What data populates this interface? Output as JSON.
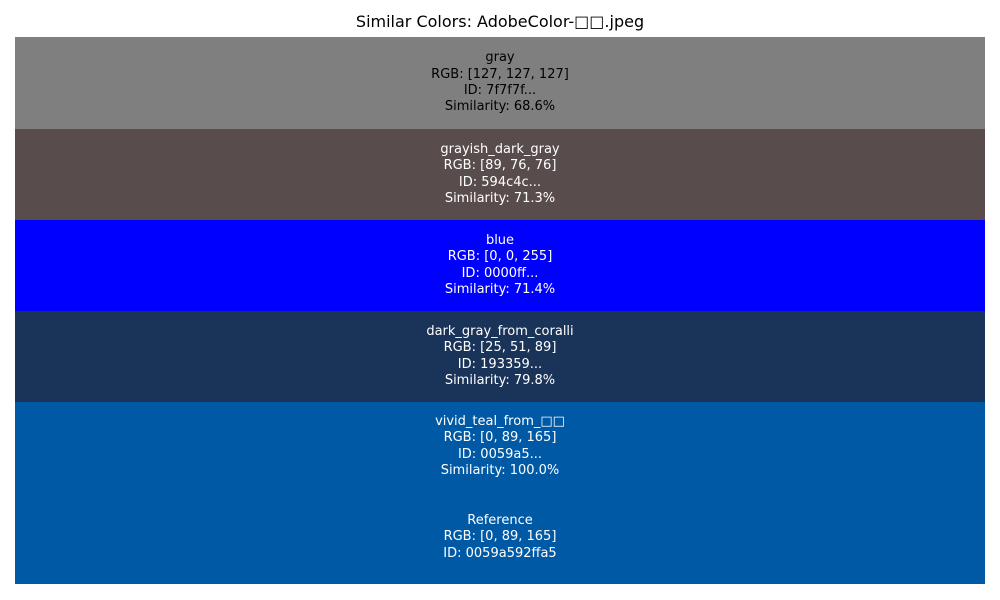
{
  "title": "Similar Colors: AdobeColor-□□.jpeg",
  "chart_data": {
    "type": "table",
    "title": "Similar Colors: AdobeColor-□□.jpeg",
    "rows": [
      {
        "name": "gray",
        "rgb": "RGB: [127, 127, 127]",
        "id": "ID: 7f7f7f...",
        "similarity": "Similarity: 68.6%",
        "color": "#7f7f7f",
        "similarity_value": 68.6
      },
      {
        "name": "grayish_dark_gray",
        "rgb": "RGB: [89, 76, 76]",
        "id": "ID: 594c4c...",
        "similarity": "Similarity: 71.3%",
        "color": "#594c4c",
        "similarity_value": 71.3
      },
      {
        "name": "blue",
        "rgb": "RGB: [0, 0, 255]",
        "id": "ID: 0000ff...",
        "similarity": "Similarity: 71.4%",
        "color": "#0000ff",
        "similarity_value": 71.4
      },
      {
        "name": "dark_gray_from_coralli",
        "rgb": "RGB: [25, 51, 89]",
        "id": "ID: 193359...",
        "similarity": "Similarity: 79.8%",
        "color": "#193359",
        "similarity_value": 79.8
      },
      {
        "name": "vivid_teal_from_□□",
        "rgb": "RGB: [0, 89, 165]",
        "id": "ID: 0059a5...",
        "similarity": "Similarity: 100.0%",
        "color": "#0059a5",
        "similarity_value": 100.0
      }
    ],
    "reference": {
      "name": "Reference",
      "rgb": "RGB: [0, 89, 165]",
      "id": "ID: 0059a592ffa5",
      "color": "#0059a5"
    }
  }
}
